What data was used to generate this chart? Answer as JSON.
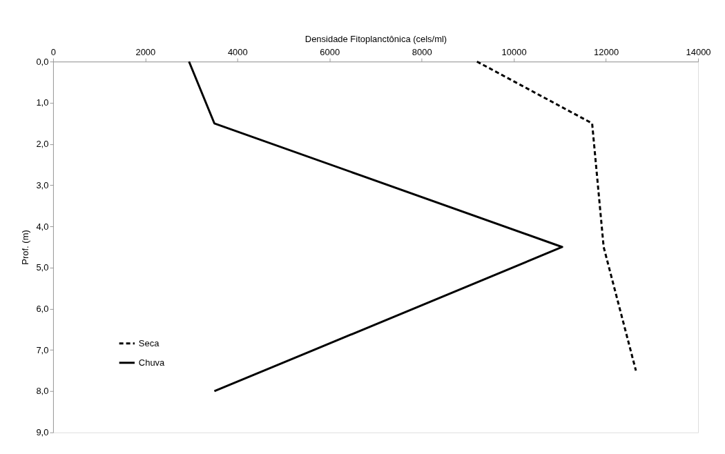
{
  "chart_data": {
    "type": "line",
    "xlabel": "Densidade Fitoplanctônica (cels/ml)",
    "ylabel": "Prof. (m)",
    "xlim": [
      0,
      14000
    ],
    "xticks": [
      0,
      2000,
      4000,
      6000,
      8000,
      10000,
      12000,
      14000
    ],
    "ylim": [
      9,
      0
    ],
    "yticks": [
      {
        "value": 0,
        "label": "0,0"
      },
      {
        "value": 1,
        "label": "1,0"
      },
      {
        "value": 2,
        "label": "2,0"
      },
      {
        "value": 3,
        "label": "3,0"
      },
      {
        "value": 4,
        "label": "4,0"
      },
      {
        "value": 5,
        "label": "5,0"
      },
      {
        "value": 6,
        "label": "6,0"
      },
      {
        "value": 7,
        "label": "7,0"
      },
      {
        "value": 8,
        "label": "8,0"
      },
      {
        "value": 9,
        "label": "9,0"
      }
    ],
    "grid": false,
    "legend": "bottom left",
    "marker": "none",
    "series": [
      {
        "name": "Seca",
        "color": "#000000",
        "line_style": "dashed",
        "x": [
          9200,
          11700,
          11950,
          12650
        ],
        "values": [
          0,
          1.5,
          4.5,
          7.5
        ]
      },
      {
        "name": "Chuva",
        "color": "#000000",
        "line_style": "solid",
        "x": [
          2950,
          3500,
          11050,
          3500
        ],
        "values": [
          0,
          1.5,
          4.5,
          8.0
        ]
      }
    ]
  }
}
